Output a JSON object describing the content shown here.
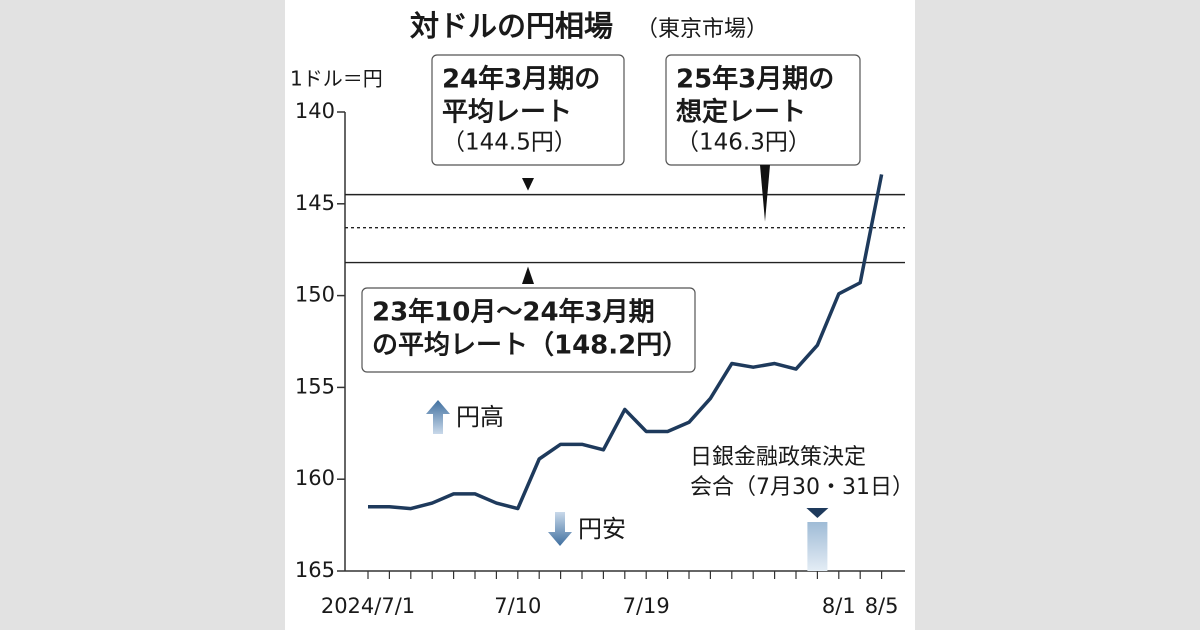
{
  "chart_data": {
    "type": "line",
    "title": "対ドルの円相場",
    "subtitle": "（東京市場）",
    "y_label": "1ドル＝円",
    "categories": [
      "2024/7/1",
      null,
      null,
      null,
      null,
      null,
      null,
      "7/10",
      null,
      null,
      null,
      null,
      null,
      "7/19",
      null,
      null,
      null,
      null,
      null,
      null,
      null,
      null,
      "8/1",
      null,
      "8/5"
    ],
    "series": [
      {
        "name": "円相場",
        "color": "#1e3a5c",
        "values": [
          161.5,
          161.5,
          161.6,
          161.3,
          160.8,
          160.8,
          161.3,
          161.6,
          158.9,
          158.1,
          158.1,
          158.4,
          156.2,
          157.4,
          157.4,
          156.9,
          155.6,
          153.7,
          153.9,
          153.7,
          154.0,
          152.7,
          149.9,
          149.3,
          143.4
        ]
      }
    ],
    "ylim": [
      140,
      165
    ],
    "yticks": [
      140,
      145,
      150,
      155,
      160,
      165
    ],
    "y_inverted": true,
    "reference_lines": [
      {
        "value": 144.5,
        "style": "solid",
        "label": [
          "24年3月期の",
          "平均レート",
          "（144.5円）"
        ]
      },
      {
        "value": 146.3,
        "style": "dotted",
        "label": [
          "25年3月期の",
          "想定レート",
          "（146.3円）"
        ]
      },
      {
        "value": 148.2,
        "style": "solid",
        "label": [
          "23年10月～24年3月期",
          "の平均レート（148.2円）"
        ]
      }
    ],
    "up_label": "円高",
    "down_label": "円安",
    "event": {
      "index": 21,
      "label": [
        "日銀金融政策決定",
        "会合（7月30・31日）"
      ]
    }
  }
}
